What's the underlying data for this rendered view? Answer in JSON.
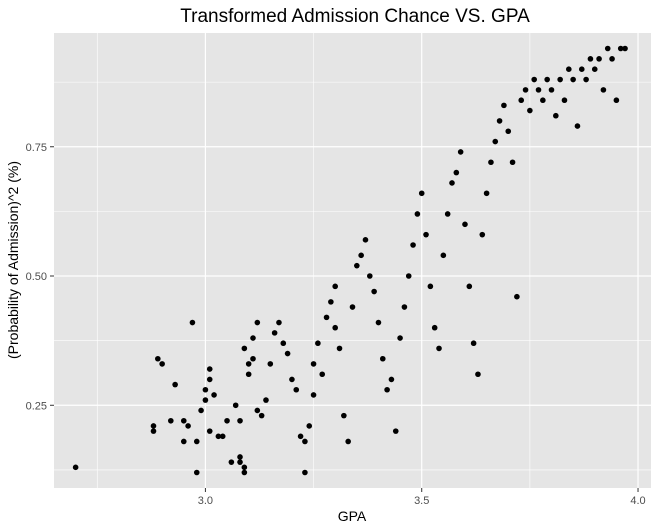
{
  "chart_data": {
    "type": "scatter",
    "title": "Transformed Admission Chance VS. GPA",
    "xlabel": "GPA",
    "ylabel": "(Probability of Admission)^2 (%)",
    "xlim": [
      2.65,
      4.03
    ],
    "ylim": [
      0.09,
      0.97
    ],
    "x_ticks": [
      3.0,
      3.5,
      4.0
    ],
    "x_tick_labels": [
      "3.0",
      "3.5",
      "4.0"
    ],
    "y_ticks": [
      0.25,
      0.5,
      0.75
    ],
    "y_tick_labels": [
      "0.25",
      "0.50",
      "0.75"
    ],
    "grid": true,
    "legend": "none",
    "colors": {
      "panel": "#e5e5e5",
      "grid": "#ffffff",
      "point": "#000000"
    },
    "points": [
      [
        2.7,
        0.13
      ],
      [
        2.88,
        0.21
      ],
      [
        2.88,
        0.2
      ],
      [
        2.89,
        0.34
      ],
      [
        2.9,
        0.33
      ],
      [
        2.92,
        0.22
      ],
      [
        2.93,
        0.29
      ],
      [
        2.95,
        0.22
      ],
      [
        2.95,
        0.18
      ],
      [
        2.96,
        0.21
      ],
      [
        2.97,
        0.41
      ],
      [
        2.98,
        0.18
      ],
      [
        2.98,
        0.12
      ],
      [
        2.99,
        0.24
      ],
      [
        3.0,
        0.26
      ],
      [
        3.0,
        0.28
      ],
      [
        3.01,
        0.3
      ],
      [
        3.01,
        0.32
      ],
      [
        3.01,
        0.2
      ],
      [
        3.02,
        0.27
      ],
      [
        3.03,
        0.19
      ],
      [
        3.04,
        0.19
      ],
      [
        3.05,
        0.22
      ],
      [
        3.06,
        0.14
      ],
      [
        3.07,
        0.25
      ],
      [
        3.08,
        0.22
      ],
      [
        3.08,
        0.15
      ],
      [
        3.08,
        0.14
      ],
      [
        3.09,
        0.12
      ],
      [
        3.09,
        0.13
      ],
      [
        3.09,
        0.36
      ],
      [
        3.1,
        0.31
      ],
      [
        3.1,
        0.33
      ],
      [
        3.11,
        0.34
      ],
      [
        3.11,
        0.38
      ],
      [
        3.12,
        0.41
      ],
      [
        3.12,
        0.24
      ],
      [
        3.13,
        0.23
      ],
      [
        3.14,
        0.26
      ],
      [
        3.15,
        0.33
      ],
      [
        3.16,
        0.39
      ],
      [
        3.17,
        0.41
      ],
      [
        3.18,
        0.37
      ],
      [
        3.19,
        0.35
      ],
      [
        3.2,
        0.3
      ],
      [
        3.21,
        0.28
      ],
      [
        3.22,
        0.19
      ],
      [
        3.23,
        0.18
      ],
      [
        3.23,
        0.12
      ],
      [
        3.24,
        0.21
      ],
      [
        3.25,
        0.27
      ],
      [
        3.25,
        0.33
      ],
      [
        3.26,
        0.37
      ],
      [
        3.27,
        0.31
      ],
      [
        3.28,
        0.42
      ],
      [
        3.29,
        0.45
      ],
      [
        3.3,
        0.48
      ],
      [
        3.3,
        0.4
      ],
      [
        3.31,
        0.36
      ],
      [
        3.32,
        0.23
      ],
      [
        3.33,
        0.18
      ],
      [
        3.34,
        0.44
      ],
      [
        3.35,
        0.52
      ],
      [
        3.36,
        0.54
      ],
      [
        3.37,
        0.57
      ],
      [
        3.38,
        0.5
      ],
      [
        3.39,
        0.47
      ],
      [
        3.4,
        0.41
      ],
      [
        3.41,
        0.34
      ],
      [
        3.42,
        0.28
      ],
      [
        3.43,
        0.3
      ],
      [
        3.44,
        0.2
      ],
      [
        3.45,
        0.38
      ],
      [
        3.46,
        0.44
      ],
      [
        3.47,
        0.5
      ],
      [
        3.48,
        0.56
      ],
      [
        3.49,
        0.62
      ],
      [
        3.5,
        0.66
      ],
      [
        3.51,
        0.58
      ],
      [
        3.52,
        0.48
      ],
      [
        3.53,
        0.4
      ],
      [
        3.54,
        0.36
      ],
      [
        3.55,
        0.54
      ],
      [
        3.56,
        0.62
      ],
      [
        3.57,
        0.68
      ],
      [
        3.58,
        0.7
      ],
      [
        3.59,
        0.74
      ],
      [
        3.6,
        0.6
      ],
      [
        3.61,
        0.48
      ],
      [
        3.62,
        0.37
      ],
      [
        3.63,
        0.31
      ],
      [
        3.64,
        0.58
      ],
      [
        3.65,
        0.66
      ],
      [
        3.66,
        0.72
      ],
      [
        3.67,
        0.76
      ],
      [
        3.68,
        0.8
      ],
      [
        3.69,
        0.83
      ],
      [
        3.7,
        0.78
      ],
      [
        3.71,
        0.72
      ],
      [
        3.72,
        0.46
      ],
      [
        3.73,
        0.84
      ],
      [
        3.74,
        0.86
      ],
      [
        3.75,
        0.82
      ],
      [
        3.76,
        0.88
      ],
      [
        3.77,
        0.86
      ],
      [
        3.78,
        0.84
      ],
      [
        3.79,
        0.88
      ],
      [
        3.8,
        0.86
      ],
      [
        3.81,
        0.81
      ],
      [
        3.82,
        0.88
      ],
      [
        3.83,
        0.84
      ],
      [
        3.84,
        0.9
      ],
      [
        3.85,
        0.88
      ],
      [
        3.86,
        0.79
      ],
      [
        3.87,
        0.9
      ],
      [
        3.88,
        0.88
      ],
      [
        3.89,
        0.92
      ],
      [
        3.9,
        0.9
      ],
      [
        3.91,
        0.92
      ],
      [
        3.92,
        0.86
      ],
      [
        3.93,
        0.94
      ],
      [
        3.94,
        0.92
      ],
      [
        3.95,
        0.84
      ],
      [
        3.96,
        0.94
      ],
      [
        3.97,
        0.94
      ]
    ]
  }
}
